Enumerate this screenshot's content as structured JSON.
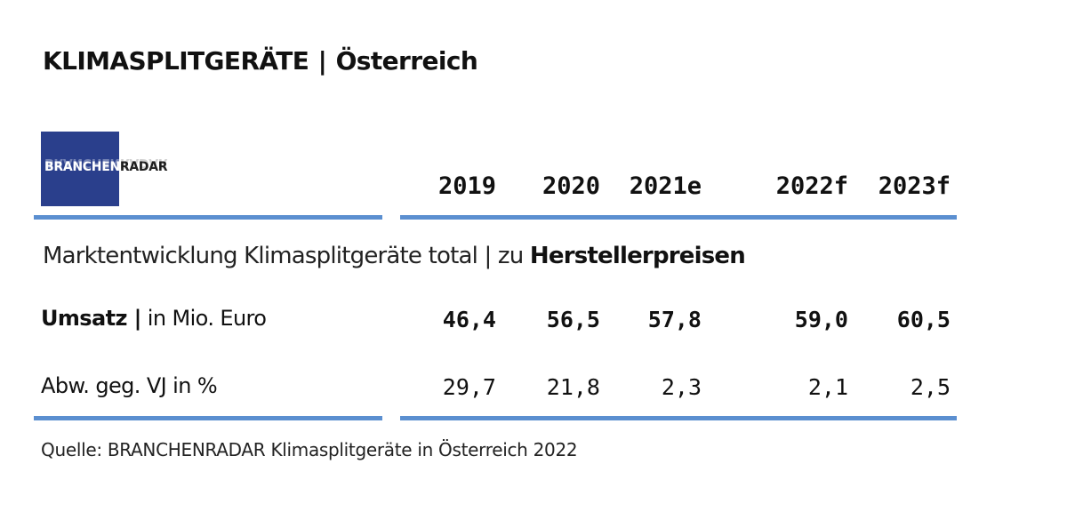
{
  "header": {
    "title_main": "KLIMASPLITGERÄTE",
    "title_sep": "|",
    "title_region": "Österreich"
  },
  "logo": {
    "part1": "BRANCHEN",
    "part2": "RADAR",
    "box_color": "#2a3f8c"
  },
  "accent_color": "#5b8fd0",
  "chart_data": {
    "type": "table",
    "title": "KLIMASPLITGERÄTE | Österreich",
    "subtitle_prefix": "Marktentwicklung Klimasplitgeräte total | zu ",
    "subtitle_bold": "Herstellerpreisen",
    "columns": [
      "2019",
      "2020",
      "2021e",
      "2022f",
      "2023f"
    ],
    "rows": [
      {
        "label_bold": "Umsatz |",
        "label_rest": " in Mio. Euro",
        "values": [
          "46,4",
          "56,5",
          "57,8",
          "59,0",
          "60,5"
        ]
      },
      {
        "label_bold": "",
        "label_rest": "Abw. geg. VJ in %",
        "values": [
          "29,7",
          "21,8",
          "2,3",
          "2,1",
          "2,5"
        ]
      }
    ],
    "source": "Quelle: BRANCHENRADAR Klimasplitgeräte in Österreich 2022"
  }
}
